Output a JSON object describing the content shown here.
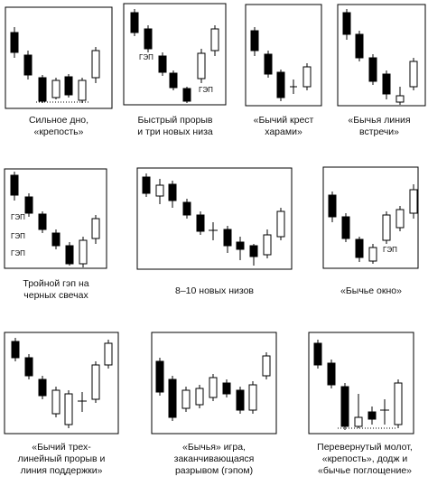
{
  "colors": {
    "bearish": "#000000",
    "bullish": "#ffffff",
    "outline": "#000000"
  },
  "patterns": [
    {
      "caption_lines": [
        "Сильное дно,",
        "«крепость»"
      ],
      "gap_labels": []
    },
    {
      "caption_lines": [
        "Быстрый прорыв",
        "и три новых низа"
      ],
      "gap_labels": [
        "ГЭП",
        "ГЭП"
      ]
    },
    {
      "caption_lines": [
        "«Бычий крест",
        "харами»"
      ],
      "gap_labels": []
    },
    {
      "caption_lines": [
        "«Бычья линия",
        "встречи»"
      ],
      "gap_labels": []
    },
    {
      "caption_lines": [
        "Тройной гэп на",
        "черных свечах"
      ],
      "gap_labels": [
        "ГЭП",
        "ГЭП",
        "ГЭП"
      ]
    },
    {
      "caption_lines": [
        "8–10 новых низов"
      ],
      "gap_labels": []
    },
    {
      "caption_lines": [
        "«Бычье окно»"
      ],
      "gap_labels": [
        "ГЭП"
      ]
    },
    {
      "caption_lines": [
        "«Бычий трех-",
        "линейный прорыв и",
        "линия поддержки»"
      ],
      "gap_labels": []
    },
    {
      "caption_lines": [
        "«Бычья» игра,",
        "заканчивающаяся",
        "разрывом (гэпом)"
      ],
      "gap_labels": []
    },
    {
      "caption_lines": [
        "Перевернутый молот,",
        "«крепость», додж и",
        "«бычье поглощение»"
      ],
      "gap_labels": []
    }
  ]
}
